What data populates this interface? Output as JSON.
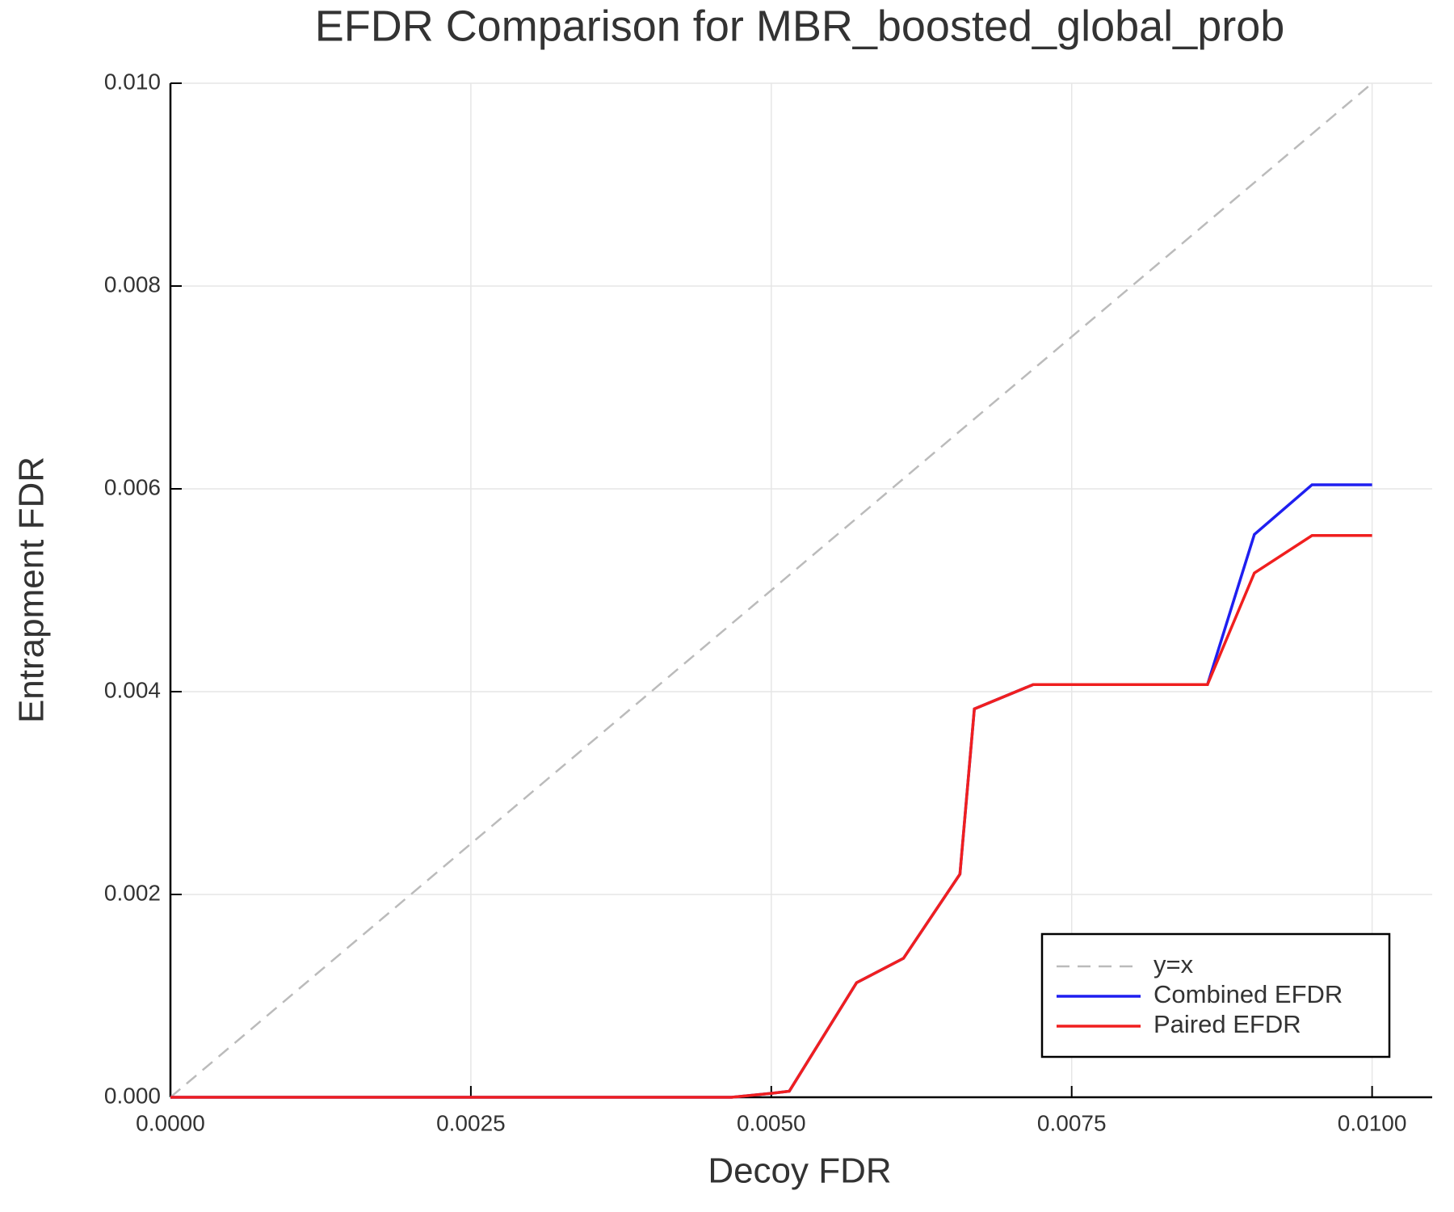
{
  "chart_data": {
    "type": "line",
    "title": "EFDR Comparison for MBR_boosted_global_prob",
    "x_label": "Decoy FDR",
    "y_label": "Entrapment FDR",
    "xlim": [
      0,
      0.0105
    ],
    "ylim": [
      0,
      0.01
    ],
    "xticks": [
      {
        "value": 0,
        "label": "0.0000"
      },
      {
        "value": 0.0025,
        "label": "0.0025"
      },
      {
        "value": 0.005,
        "label": "0.0050"
      },
      {
        "value": 0.0075,
        "label": "0.0075"
      },
      {
        "value": 0.01,
        "label": "0.0100"
      }
    ],
    "yticks": [
      {
        "value": 0,
        "label": "0.000"
      },
      {
        "value": 0.002,
        "label": "0.002"
      },
      {
        "value": 0.004,
        "label": "0.004"
      },
      {
        "value": 0.006,
        "label": "0.006"
      },
      {
        "value": 0.008,
        "label": "0.008"
      },
      {
        "value": 0.01,
        "label": "0.010"
      }
    ],
    "grid": true,
    "legend": "lower right",
    "series": [
      {
        "name": "y=x",
        "color": "#bbbbbb",
        "dashed": true,
        "x": [
          0,
          0.01
        ],
        "values": [
          0,
          0.01
        ]
      },
      {
        "name": "Combined EFDR",
        "color": "#1f1ff0",
        "dashed": false,
        "x": [
          0,
          0.00467,
          0.00501,
          0.00515,
          0.00571,
          0.0061,
          0.00657,
          0.00669,
          0.00718,
          0.00863,
          0.00902,
          0.0095,
          0.01
        ],
        "values": [
          0,
          0,
          4e-05,
          6e-05,
          0.00113,
          0.00137,
          0.0022,
          0.00383,
          0.00407,
          0.00407,
          0.00555,
          0.00604,
          0.00604
        ]
      },
      {
        "name": "Paired EFDR",
        "color": "#f01f1f",
        "dashed": false,
        "x": [
          0,
          0.00467,
          0.00501,
          0.00515,
          0.00571,
          0.0061,
          0.00657,
          0.00669,
          0.00718,
          0.00863,
          0.00902,
          0.0095,
          0.01
        ],
        "values": [
          0,
          0,
          4e-05,
          6e-05,
          0.00113,
          0.00137,
          0.0022,
          0.00383,
          0.00407,
          0.00407,
          0.00517,
          0.00554,
          0.00554
        ]
      }
    ]
  }
}
